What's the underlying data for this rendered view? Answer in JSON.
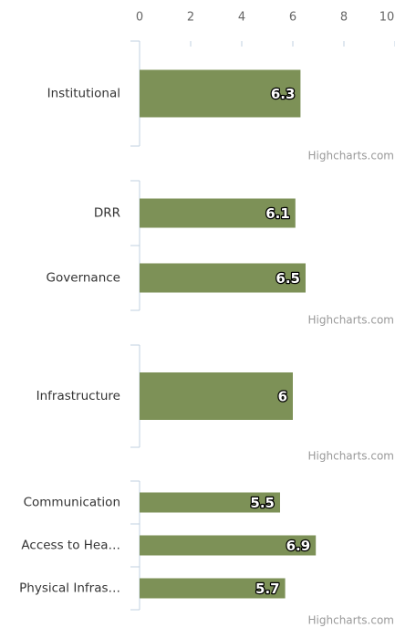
{
  "chart_data": [
    {
      "type": "bar",
      "categories": [
        "Institutional"
      ],
      "values": [
        6.3
      ],
      "color": "#7d9157",
      "xlim": [
        0,
        10
      ],
      "xticks": [
        0,
        2,
        4,
        6,
        8,
        10
      ],
      "credits": "Highcharts.com"
    },
    {
      "type": "bar",
      "categories": [
        "DRR",
        "Governance"
      ],
      "values": [
        6.1,
        6.5
      ],
      "color": "#7d9157",
      "xlim": [
        0,
        10
      ],
      "credits": "Highcharts.com"
    },
    {
      "type": "bar",
      "categories": [
        "Infrastructure"
      ],
      "values": [
        6
      ],
      "color": "#7d9157",
      "xlim": [
        0,
        10
      ],
      "credits": "Highcharts.com"
    },
    {
      "type": "bar",
      "categories": [
        "Communication",
        "Access to Hea…",
        "Physical Infras…"
      ],
      "values": [
        5.5,
        6.9,
        5.7
      ],
      "color": "#7d9157",
      "xlim": [
        0,
        10
      ],
      "credits": "Highcharts.com"
    }
  ]
}
